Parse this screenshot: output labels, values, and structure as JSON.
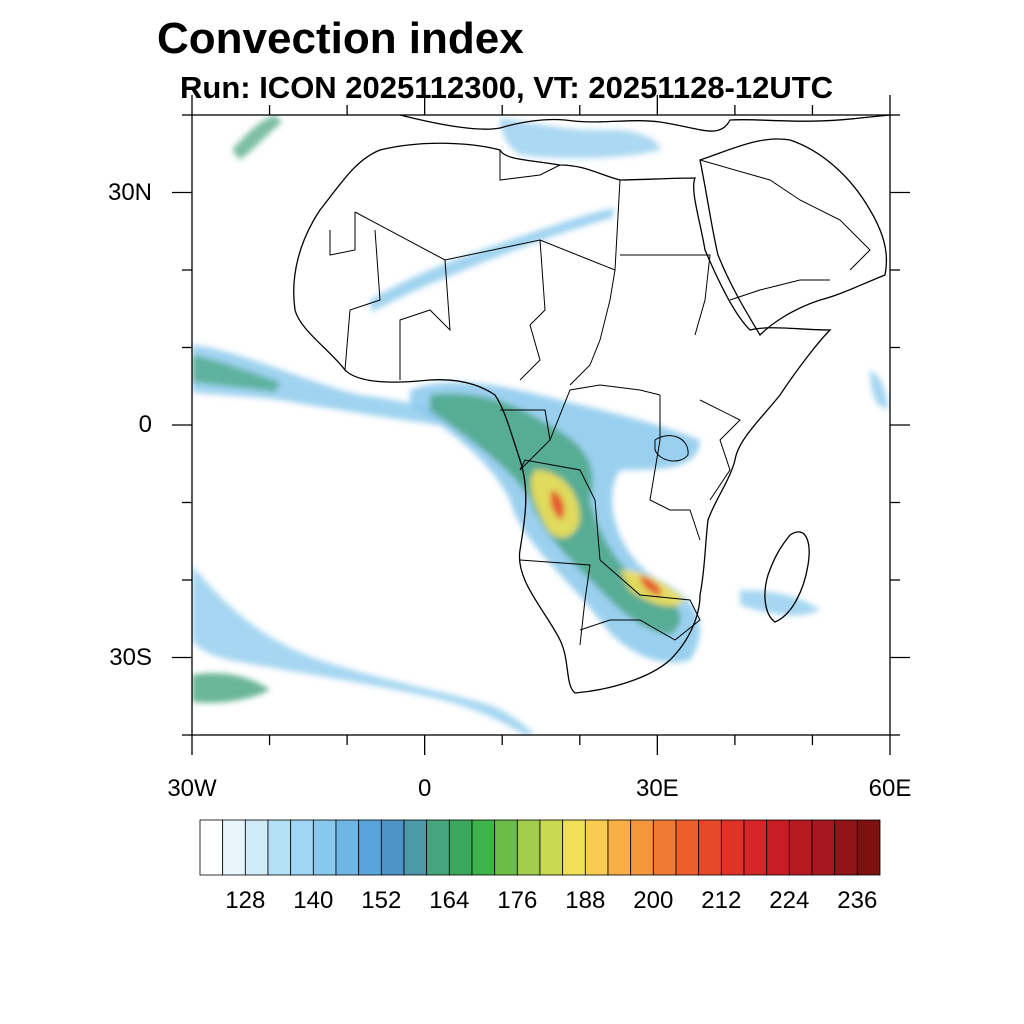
{
  "title": "Convection index",
  "subtitle": "Run: ICON 2025112300,  VT: 20251128-12UTC",
  "map": {
    "region": "Africa",
    "projection": "cylindrical",
    "lon_range": [
      -30,
      60
    ],
    "lat_range": [
      -40,
      40
    ],
    "lat_labels": [
      {
        "lat": 30,
        "text": "30N"
      },
      {
        "lat": 0,
        "text": "0"
      },
      {
        "lat": -30,
        "text": "30S"
      }
    ],
    "lon_labels": [
      {
        "lon": -30,
        "text": "30W"
      },
      {
        "lon": 0,
        "text": "0"
      },
      {
        "lon": 30,
        "text": "30E"
      },
      {
        "lon": 60,
        "text": "60E"
      }
    ]
  },
  "colorbar": {
    "levels": [
      120,
      124,
      128,
      132,
      136,
      140,
      144,
      148,
      152,
      156,
      160,
      164,
      168,
      172,
      176,
      180,
      184,
      188,
      192,
      196,
      200,
      204,
      208,
      212,
      216,
      220,
      224,
      228,
      232,
      236
    ],
    "labels": [
      "128",
      "140",
      "152",
      "164",
      "176",
      "188",
      "200",
      "212",
      "224",
      "236"
    ],
    "colors": [
      "#ffffff",
      "#e8f6fc",
      "#cfeaf8",
      "#b4e0f6",
      "#9ed6f4",
      "#88c8ec",
      "#70b6e4",
      "#5aa4dc",
      "#4f94c8",
      "#4c9aa8",
      "#46a47e",
      "#3aa85c",
      "#3cb44a",
      "#6cbc48",
      "#a2cc4c",
      "#cad852",
      "#f0e058",
      "#f8cc50",
      "#f6b046",
      "#f4963c",
      "#f07a34",
      "#ec5e2c",
      "#e64828",
      "#e03228",
      "#d42628",
      "#c81c26",
      "#b81a24",
      "#a61820",
      "#901418",
      "#7e1010"
    ]
  }
}
